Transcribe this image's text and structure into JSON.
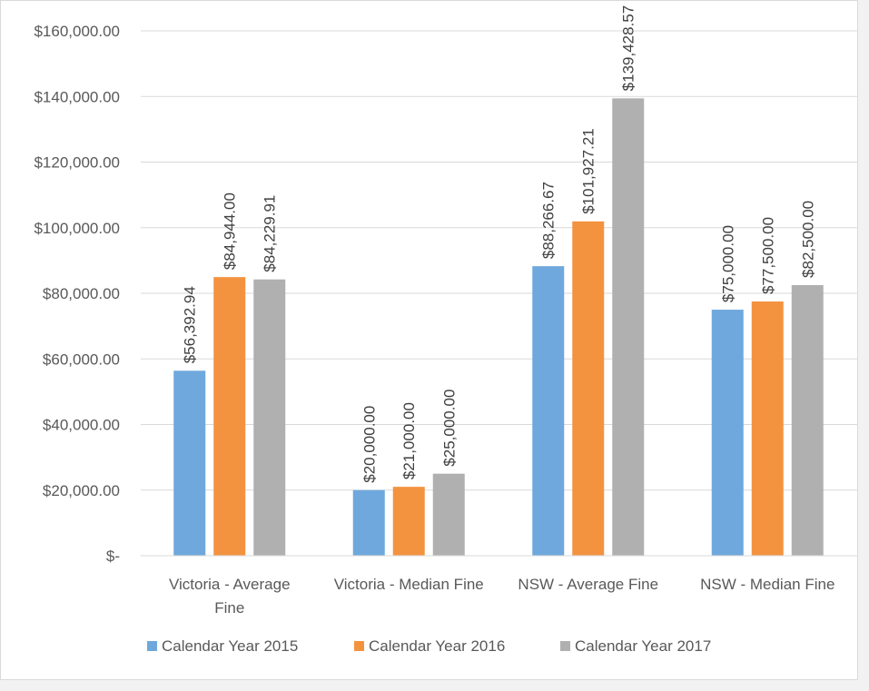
{
  "chart_data": {
    "type": "bar",
    "categories": [
      [
        "Victoria - Average",
        "Fine"
      ],
      [
        "Victoria - Median Fine"
      ],
      [
        "NSW - Average Fine"
      ],
      [
        "NSW - Median Fine"
      ]
    ],
    "series": [
      {
        "name": "Calendar Year 2015",
        "color": "#6fa8dc",
        "values": [
          56392.94,
          20000.0,
          88266.67,
          75000.0
        ],
        "labels": [
          "$56,392.94",
          "$20,000.00",
          "$88,266.67",
          "$75,000.00"
        ]
      },
      {
        "name": "Calendar Year 2016",
        "color": "#f39340",
        "values": [
          84944.0,
          21000.0,
          101927.21,
          77500.0
        ],
        "labels": [
          "$84,944.00",
          "$21,000.00",
          "$101,927.21",
          "$77,500.00"
        ]
      },
      {
        "name": "Calendar Year 2017",
        "color": "#b0b0b0",
        "values": [
          84229.91,
          25000.0,
          139428.57,
          82500.0
        ],
        "labels": [
          "$84,229.91",
          "$25,000.00",
          "$139,428.57",
          "$82,500.00"
        ]
      }
    ],
    "yticks": [
      0,
      20000,
      40000,
      60000,
      80000,
      100000,
      120000,
      140000,
      160000
    ],
    "ytick_labels": [
      "$-",
      "$20,000.00",
      "$40,000.00",
      "$60,000.00",
      "$80,000.00",
      "$100,000.00",
      "$120,000.00",
      "$140,000.00",
      "$160,000.00"
    ],
    "ylim": [
      0,
      160000
    ],
    "grid": true,
    "legend_position": "bottom",
    "gridline_color": "#d9d9d9",
    "title": "",
    "xlabel": "",
    "ylabel": ""
  }
}
